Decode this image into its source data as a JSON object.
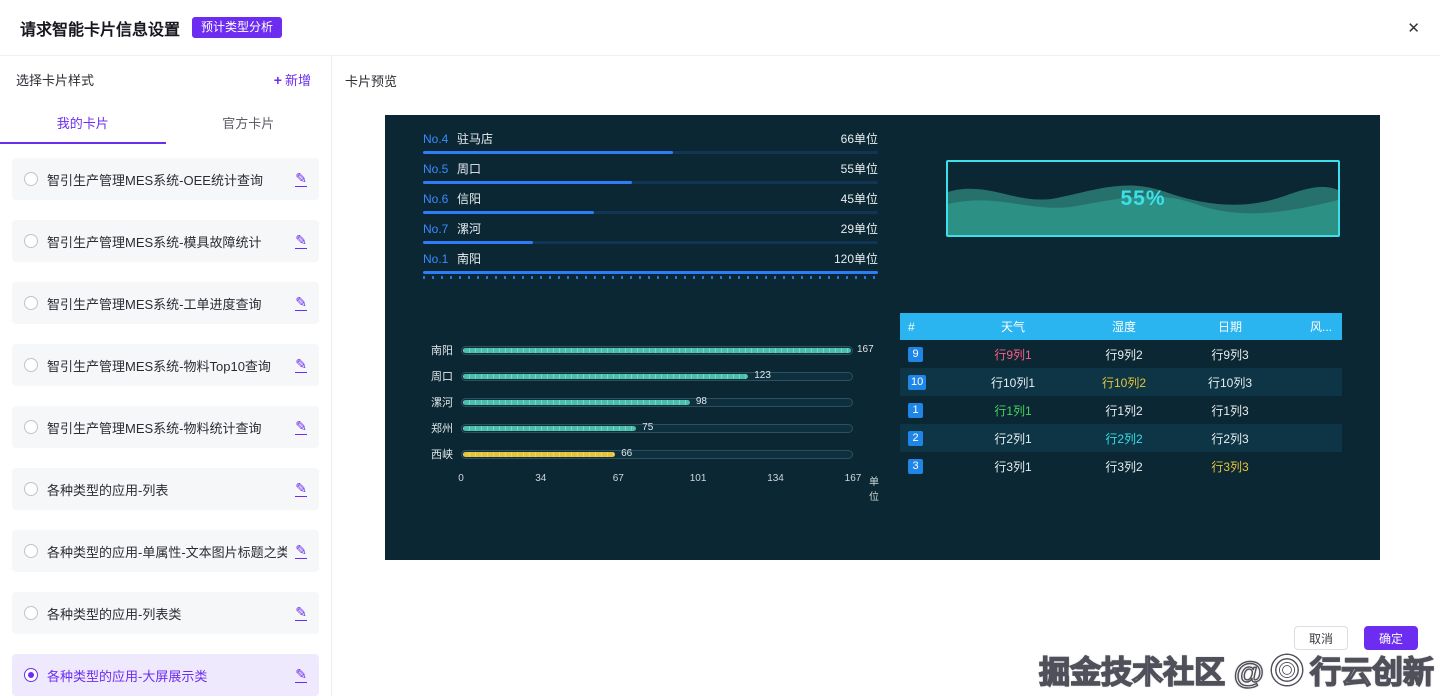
{
  "header": {
    "title": "请求智能卡片信息设置",
    "badge": "预计类型分析",
    "close_icon": "✕"
  },
  "sidebar": {
    "title": "选择卡片样式",
    "add": {
      "icon": "+",
      "label": "新增"
    },
    "tabs": [
      {
        "label": "我的卡片",
        "active": true
      },
      {
        "label": "官方卡片",
        "active": false
      }
    ],
    "items": [
      {
        "label": "智引生产管理MES系统-OEE统计查询",
        "selected": false
      },
      {
        "label": "智引生产管理MES系统-模具故障统计",
        "selected": false
      },
      {
        "label": "智引生产管理MES系统-工单进度查询",
        "selected": false
      },
      {
        "label": "智引生产管理MES系统-物料Top10查询",
        "selected": false
      },
      {
        "label": "智引生产管理MES系统-物料统计查询",
        "selected": false
      },
      {
        "label": "各种类型的应用-列表",
        "selected": false
      },
      {
        "label": "各种类型的应用-单属性-文本图片标题之类",
        "selected": false
      },
      {
        "label": "各种类型的应用-列表类",
        "selected": false
      },
      {
        "label": "各种类型的应用-大屏展示类",
        "selected": true
      }
    ]
  },
  "preview": {
    "title": "卡片预览",
    "ranking": {
      "unit": "单位",
      "max": 120,
      "bar_color": "#2e7cf6",
      "items": [
        {
          "rank": "No.4",
          "name": "驻马店",
          "value": 66
        },
        {
          "rank": "No.5",
          "name": "周口",
          "value": 55
        },
        {
          "rank": "No.6",
          "name": "信阳",
          "value": 45
        },
        {
          "rank": "No.7",
          "name": "漯河",
          "value": 29
        },
        {
          "rank": "No.1",
          "name": "南阳",
          "value": 120
        }
      ]
    },
    "gauge": {
      "label": "55%",
      "border_color": "#3be0ea",
      "wave_colors": [
        "#3fae9c",
        "#2d9387"
      ]
    },
    "barchart": {
      "type": "bar",
      "categories": [
        "南阳",
        "周口",
        "漯河",
        "郑州",
        "西峡"
      ],
      "values": [
        167,
        123,
        98,
        75,
        66
      ],
      "colors": [
        "#49bfae",
        "#49bfae",
        "#49bfae",
        "#49bfae",
        "#e5c43a"
      ],
      "max": 167,
      "ticks": [
        0,
        34,
        67,
        101,
        134,
        167
      ],
      "unit": "单位"
    },
    "table": {
      "header_bg": "#2ab4f0",
      "headers": [
        "#",
        "天气",
        "湿度",
        "日期",
        "风..."
      ],
      "rows": [
        {
          "badge": "9",
          "dark": false,
          "cells": [
            {
              "text": "行9列1",
              "color": "#ff5d87"
            },
            {
              "text": "行9列2"
            },
            {
              "text": "行9列3"
            }
          ]
        },
        {
          "badge": "10",
          "dark": true,
          "cells": [
            {
              "text": "行10列1"
            },
            {
              "text": "行10列2",
              "color": "#e5c43a"
            },
            {
              "text": "行10列3"
            }
          ]
        },
        {
          "badge": "1",
          "dark": false,
          "cells": [
            {
              "text": "行1列1",
              "color": "#47d15f"
            },
            {
              "text": "行1列2"
            },
            {
              "text": "行1列3"
            }
          ]
        },
        {
          "badge": "2",
          "dark": true,
          "cells": [
            {
              "text": "行2列1"
            },
            {
              "text": "行2列2",
              "color": "#35dfe8"
            },
            {
              "text": "行2列3"
            }
          ]
        },
        {
          "badge": "3",
          "dark": false,
          "cells": [
            {
              "text": "行3列1"
            },
            {
              "text": "行3列2"
            },
            {
              "text": "行3列3",
              "color": "#e5c43a"
            }
          ]
        }
      ]
    }
  },
  "footer": {
    "cancel": "取消",
    "confirm": "确定"
  },
  "watermark": {
    "left": "掘金技术社区 @",
    "right": "行云创新"
  },
  "colors": {
    "accent": "#6d2df0",
    "panel_bg": "#0b2733",
    "table_header": "#2ab4f0",
    "rank_blue": "#2e7cf6"
  }
}
